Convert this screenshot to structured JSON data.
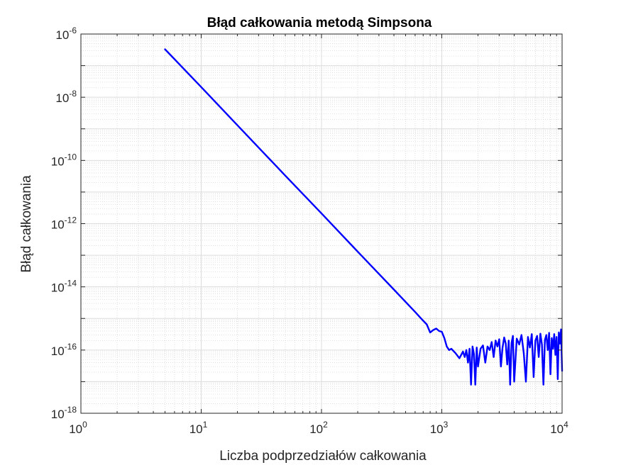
{
  "chart_data": {
    "type": "line",
    "title": "Błąd całkowania metodą Simpsona",
    "xlabel": "Liczba podprzedziałów całkowania",
    "ylabel": "Błąd całkowania",
    "xscale": "log",
    "yscale": "log",
    "xlim": [
      1,
      10000
    ],
    "ylim": [
      1e-18,
      1e-06
    ],
    "grid": "on (major and minor)",
    "x_ticks": [
      {
        "base": "10",
        "exp": "0"
      },
      {
        "base": "10",
        "exp": "1"
      },
      {
        "base": "10",
        "exp": "2"
      },
      {
        "base": "10",
        "exp": "3"
      },
      {
        "base": "10",
        "exp": "4"
      }
    ],
    "y_ticks": [
      {
        "base": "10",
        "exp": "-18"
      },
      {
        "base": "10",
        "exp": "-16"
      },
      {
        "base": "10",
        "exp": "-14"
      },
      {
        "base": "10",
        "exp": "-12"
      },
      {
        "base": "10",
        "exp": "-10"
      },
      {
        "base": "10",
        "exp": "-8"
      },
      {
        "base": "10",
        "exp": "-6"
      }
    ],
    "line_color": "#0000ff",
    "series": [
      {
        "x": [
          5,
          10,
          20,
          50,
          100,
          200,
          400,
          600,
          700,
          750,
          800,
          850,
          900,
          950,
          1000,
          1050,
          1100,
          1150,
          1200,
          1300,
          1400,
          1500,
          1550,
          1600,
          1650,
          1700,
          1750,
          1800,
          1850,
          1900,
          1950,
          2000,
          2100,
          2200,
          2300,
          2400,
          2500,
          2600,
          2700,
          2800,
          2900,
          3000,
          3100,
          3200,
          3300,
          3400,
          3500,
          3600,
          3700,
          3800,
          3900,
          4000,
          4200,
          4400,
          4600,
          4800,
          5000,
          5200,
          5400,
          5600,
          5800,
          6000,
          6200,
          6400,
          6600,
          6800,
          7000,
          7200,
          7400,
          7600,
          7800,
          8000,
          8200,
          8400,
          8600,
          8800,
          9000,
          9200,
          9400,
          9600,
          9800,
          10000
        ],
        "y": [
          3.3e-07,
          2.1e-08,
          1.3e-09,
          3.3e-11,
          2.1e-12,
          1.3e-13,
          8.2e-15,
          1.6e-15,
          8.5e-16,
          6.5e-16,
          3.6e-16,
          4.3e-16,
          4.8e-16,
          4e-16,
          3.8e-16,
          2.4e-16,
          1.3e-16,
          1e-16,
          1.1e-16,
          8e-17,
          5.5e-17,
          9e-17,
          6e-17,
          1e-16,
          4e-17,
          1.1e-16,
          8e-18,
          1.3e-16,
          7.5e-17,
          8e-18,
          1.2e-16,
          3e-17,
          1.1e-16,
          1.4e-16,
          4e-17,
          1.3e-16,
          1e-16,
          1.8e-16,
          6e-17,
          2e-16,
          1.3e-16,
          2.2e-16,
          3e-17,
          1.2e-16,
          2.5e-16,
          1.6e-16,
          3.5e-17,
          2e-16,
          8e-18,
          1.7e-16,
          2.8e-16,
          1e-17,
          2.3e-16,
          1.5e-16,
          3e-16,
          8e-17,
          1e-17,
          2.6e-16,
          1.2e-16,
          3.2e-16,
          1.4e-17,
          2e-16,
          2.8e-16,
          6e-17,
          3.3e-16,
          1.5e-16,
          8e-18,
          2.1e-16,
          3e-16,
          1e-16,
          3.5e-16,
          1.7e-17,
          2.4e-16,
          1.1e-16,
          3.2e-16,
          7e-17,
          2.6e-16,
          1.2e-17,
          3.6e-16,
          1.6e-16,
          4.5e-16,
          2.2e-17
        ]
      }
    ]
  }
}
